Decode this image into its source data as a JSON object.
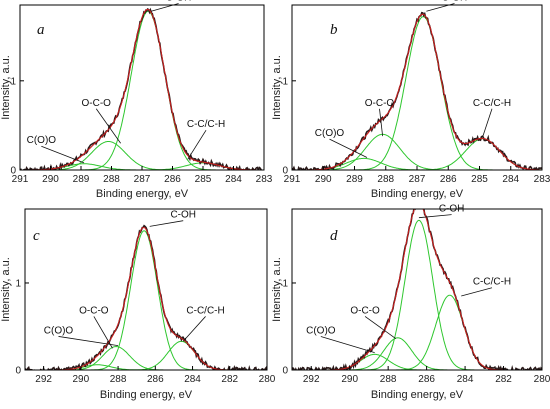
{
  "figure": {
    "colors": {
      "envelope": "#c81e1e",
      "experimental": "#2a1a1a",
      "component": "#2fc72f",
      "frame": "#000000"
    },
    "panels": [
      {
        "letter": "a",
        "xlabel": "Binding energy, eV",
        "ylabel": "Intensity, a.u.",
        "xlim": [
          291,
          283
        ],
        "ylim": [
          0,
          1.85
        ],
        "xticks": [
          291,
          290,
          289,
          288,
          287,
          286,
          285,
          284,
          283
        ],
        "yticks": [
          0,
          1
        ],
        "peaks": [
          {
            "name": "C-OH",
            "center": 286.8,
            "amp": 1.78,
            "width": 0.55
          },
          {
            "name": "O-C-O",
            "center": 288.1,
            "amp": 0.32,
            "width": 0.55
          },
          {
            "name": "C(O)O",
            "center": 288.9,
            "amp": 0.07,
            "width": 0.55
          },
          {
            "name": "C-C/C-H",
            "center": 285.0,
            "amp": 0.08,
            "width": 0.55
          }
        ],
        "annotations": [
          {
            "text": "C-OH",
            "x": 285.8,
            "y": 1.9,
            "tx": 286.7,
            "ty": 1.78
          },
          {
            "text": "O-C-O",
            "x": 288.5,
            "y": 0.72,
            "tx": 287.7,
            "ty": 0.3
          },
          {
            "text": "C(O)O",
            "x": 290.3,
            "y": 0.3,
            "tx": 288.9,
            "ty": 0.08
          },
          {
            "text": "C-C/C-H",
            "x": 284.9,
            "y": 0.48,
            "tx": 285.5,
            "ty": 0.12
          }
        ]
      },
      {
        "letter": "b",
        "xlabel": "Binding energy, eV",
        "ylabel": "Intensity, a.u.",
        "xlim": [
          291,
          283
        ],
        "ylim": [
          0,
          1.85
        ],
        "xticks": [
          291,
          290,
          289,
          288,
          287,
          286,
          285,
          284,
          283
        ],
        "yticks": [
          0,
          1
        ],
        "peaks": [
          {
            "name": "C-OH",
            "center": 286.8,
            "amp": 1.72,
            "width": 0.55
          },
          {
            "name": "O-C-O",
            "center": 288.1,
            "amp": 0.4,
            "width": 0.55
          },
          {
            "name": "C(O)O",
            "center": 288.7,
            "amp": 0.13,
            "width": 0.55
          },
          {
            "name": "C-C/C-H",
            "center": 284.9,
            "amp": 0.35,
            "width": 0.55
          }
        ],
        "annotations": [
          {
            "text": "C-OH",
            "x": 285.8,
            "y": 1.9,
            "tx": 286.7,
            "ty": 1.78
          },
          {
            "text": "O-C-O",
            "x": 288.2,
            "y": 0.72,
            "tx": 288.1,
            "ty": 0.38
          },
          {
            "text": "C(O)O",
            "x": 289.8,
            "y": 0.38,
            "tx": 288.6,
            "ty": 0.14
          },
          {
            "text": "C-C/C-H",
            "x": 284.6,
            "y": 0.72,
            "tx": 284.9,
            "ty": 0.37
          }
        ]
      },
      {
        "letter": "c",
        "xlabel": "Binding energy, eV",
        "ylabel": "Intensity, a.u.",
        "xlim": [
          293,
          280
        ],
        "ylim": [
          0,
          1.85
        ],
        "xticks": [
          292,
          290,
          288,
          286,
          284,
          282,
          280
        ],
        "yticks": [
          0,
          1
        ],
        "peaks": [
          {
            "name": "C-OH",
            "center": 286.6,
            "amp": 1.6,
            "width": 0.72
          },
          {
            "name": "O-C-O",
            "center": 288.1,
            "amp": 0.27,
            "width": 0.72
          },
          {
            "name": "C(O)O",
            "center": 289.1,
            "amp": 0.06,
            "width": 0.72
          },
          {
            "name": "C-C/C-H",
            "center": 284.6,
            "amp": 0.33,
            "width": 0.72
          }
        ],
        "annotations": [
          {
            "text": "C-OH",
            "x": 284.5,
            "y": 1.75,
            "tx": 286.3,
            "ty": 1.65
          },
          {
            "text": "O-C-O",
            "x": 289.3,
            "y": 0.65,
            "tx": 288.3,
            "ty": 0.25
          },
          {
            "text": "C(O)O",
            "x": 291.2,
            "y": 0.42,
            "tx": 288.0,
            "ty": 0.28
          },
          {
            "text": "C-C/C-H",
            "x": 283.3,
            "y": 0.65,
            "tx": 284.5,
            "ty": 0.33
          }
        ]
      },
      {
        "letter": "d",
        "xlabel": "Binding energy, eV",
        "ylabel": "Intensity, a.u.",
        "xlim": [
          293,
          280
        ],
        "ylim": [
          0,
          1.85
        ],
        "xticks": [
          292,
          290,
          288,
          286,
          284,
          282,
          280
        ],
        "yticks": [
          0,
          1
        ],
        "peaks": [
          {
            "name": "C-OH",
            "center": 286.4,
            "amp": 1.72,
            "width": 0.72
          },
          {
            "name": "O-C-O",
            "center": 287.5,
            "amp": 0.37,
            "width": 0.72
          },
          {
            "name": "C(O)O",
            "center": 288.7,
            "amp": 0.18,
            "width": 0.72
          },
          {
            "name": "C-C/C-H",
            "center": 284.8,
            "amp": 0.86,
            "width": 0.72
          }
        ],
        "annotations": [
          {
            "text": "C-OH",
            "x": 284.7,
            "y": 1.82,
            "tx": 286.4,
            "ty": 1.75
          },
          {
            "text": "O-C-O",
            "x": 289.2,
            "y": 0.65,
            "tx": 287.6,
            "ty": 0.36
          },
          {
            "text": "C(O)O",
            "x": 291.5,
            "y": 0.42,
            "tx": 288.7,
            "ty": 0.2
          },
          {
            "text": "C-C/C-H",
            "x": 282.6,
            "y": 0.98,
            "tx": 284.2,
            "ty": 0.85
          }
        ]
      }
    ]
  },
  "chart_data": [
    {
      "type": "line",
      "title": "a",
      "xlabel": "Binding energy, eV",
      "ylabel": "Intensity, a.u.",
      "xlim": [
        291,
        283
      ],
      "ylim": [
        0,
        1.85
      ],
      "series": [
        {
          "name": "C-OH",
          "peak_center": 286.8,
          "peak_height": 1.78
        },
        {
          "name": "O-C-O",
          "peak_center": 288.1,
          "peak_height": 0.32
        },
        {
          "name": "C(O)O",
          "peak_center": 288.9,
          "peak_height": 0.07
        },
        {
          "name": "C-C/C-H",
          "peak_center": 285.0,
          "peak_height": 0.08
        }
      ]
    },
    {
      "type": "line",
      "title": "b",
      "xlabel": "Binding energy, eV",
      "ylabel": "Intensity, a.u.",
      "xlim": [
        291,
        283
      ],
      "ylim": [
        0,
        1.85
      ],
      "series": [
        {
          "name": "C-OH",
          "peak_center": 286.8,
          "peak_height": 1.72
        },
        {
          "name": "O-C-O",
          "peak_center": 288.1,
          "peak_height": 0.4
        },
        {
          "name": "C(O)O",
          "peak_center": 288.7,
          "peak_height": 0.13
        },
        {
          "name": "C-C/C-H",
          "peak_center": 284.9,
          "peak_height": 0.35
        }
      ]
    },
    {
      "type": "line",
      "title": "c",
      "xlabel": "Binding energy, eV",
      "ylabel": "Intensity, a.u.",
      "xlim": [
        293,
        280
      ],
      "ylim": [
        0,
        1.85
      ],
      "series": [
        {
          "name": "C-OH",
          "peak_center": 286.6,
          "peak_height": 1.6
        },
        {
          "name": "O-C-O",
          "peak_center": 288.1,
          "peak_height": 0.27
        },
        {
          "name": "C(O)O",
          "peak_center": 289.1,
          "peak_height": 0.06
        },
        {
          "name": "C-C/C-H",
          "peak_center": 284.6,
          "peak_height": 0.33
        }
      ]
    },
    {
      "type": "line",
      "title": "d",
      "xlabel": "Binding energy, eV",
      "ylabel": "Intensity, a.u.",
      "xlim": [
        293,
        280
      ],
      "ylim": [
        0,
        1.85
      ],
      "series": [
        {
          "name": "C-OH",
          "peak_center": 286.4,
          "peak_height": 1.72
        },
        {
          "name": "O-C-O",
          "peak_center": 287.5,
          "peak_height": 0.37
        },
        {
          "name": "C(O)O",
          "peak_center": 288.7,
          "peak_height": 0.18
        },
        {
          "name": "C-C/C-H",
          "peak_center": 284.8,
          "peak_height": 0.86
        }
      ]
    }
  ]
}
